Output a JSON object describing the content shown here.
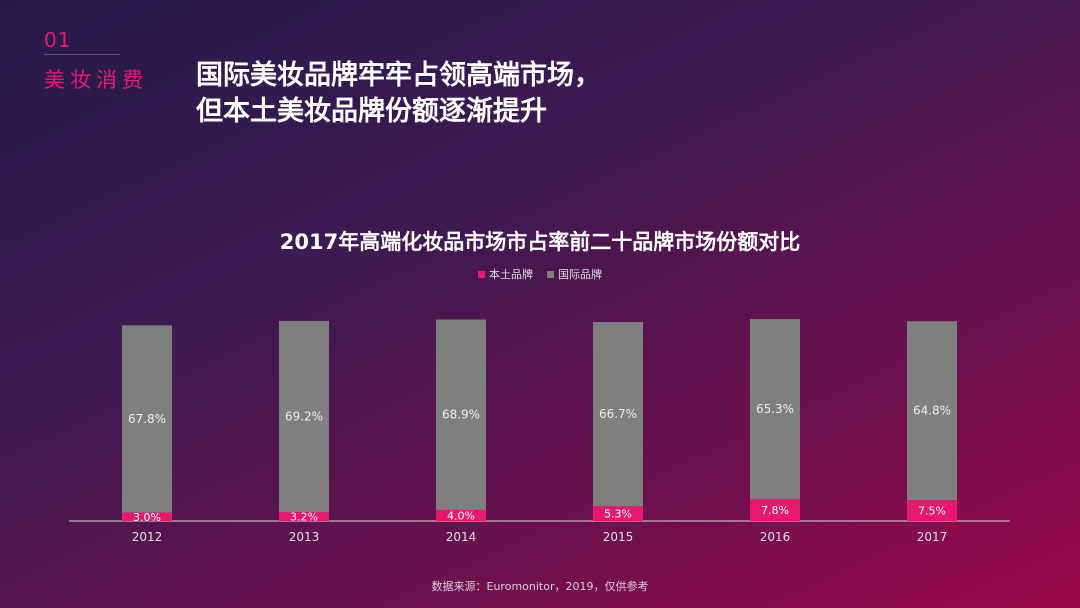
{
  "section": {
    "number": "01",
    "label": "美妆消费"
  },
  "headline": {
    "line1": "国际美妆品牌牢牢占领高端市场，",
    "line2": "但本土美妆品牌份额逐渐提升"
  },
  "source": "数据来源：Euromonitor，2019，仅供参考",
  "colors": {
    "domestic": "#e6196e",
    "international": "#7f7f7f",
    "axis": "#d9d9d9",
    "accent": "#e6196e"
  },
  "chart_data": {
    "type": "bar",
    "stacked": true,
    "title": "2017年高端化妆品市场市占率前二十品牌市场份额对比",
    "categories": [
      "2012",
      "2013",
      "2014",
      "2015",
      "2016",
      "2017"
    ],
    "series": [
      {
        "name": "本土品牌",
        "values": [
          3.0,
          3.2,
          4.0,
          5.3,
          7.8,
          7.5
        ],
        "labels": [
          "3.0%",
          "3.2%",
          "4.0%",
          "5.3%",
          "7.8%",
          "7.5%"
        ]
      },
      {
        "name": "国际品牌",
        "values": [
          67.8,
          69.2,
          68.9,
          66.7,
          65.3,
          64.8
        ],
        "labels": [
          "67.8%",
          "69.2%",
          "68.9%",
          "66.7%",
          "65.3%",
          "64.8%"
        ]
      }
    ],
    "legend_position": "top-center",
    "grid": false,
    "ylim": [
      0,
      73.1
    ]
  }
}
